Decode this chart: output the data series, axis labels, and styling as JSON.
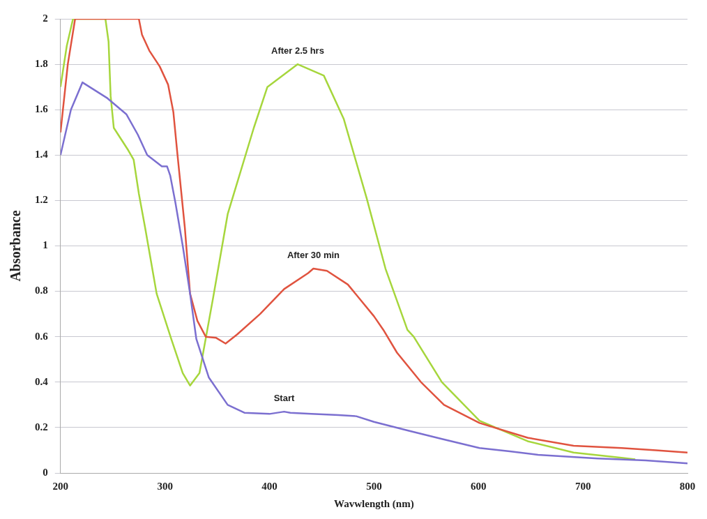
{
  "chart_data": {
    "type": "line",
    "xlabel": "Wavwlength (nm)",
    "ylabel": "Absorbance",
    "xlim": [
      200,
      800
    ],
    "xticks": [
      200,
      300,
      400,
      500,
      600,
      700,
      800
    ],
    "ylim": [
      0,
      2
    ],
    "yticks": [
      0,
      0.2,
      0.4,
      0.6,
      0.8,
      1,
      1.2,
      1.4,
      1.6,
      1.8,
      2
    ],
    "grid": "y",
    "marker": "none",
    "line_style": "solid",
    "series": [
      {
        "name": "Start",
        "color": "#7b6fd0",
        "x": [
          200,
          210,
          221,
          245,
          263,
          274,
          283,
          297,
          302,
          305,
          310,
          317,
          324,
          330,
          342,
          360,
          376,
          400,
          414,
          420,
          440,
          466,
          483,
          500,
          534,
          565,
          601,
          630,
          657,
          714,
          760,
          800
        ],
        "values": [
          1.4,
          1.6,
          1.72,
          1.65,
          1.58,
          1.49,
          1.4,
          1.35,
          1.35,
          1.31,
          1.19,
          1.0,
          0.79,
          0.59,
          0.42,
          0.3,
          0.265,
          0.26,
          0.27,
          0.265,
          0.26,
          0.255,
          0.25,
          0.225,
          0.185,
          0.15,
          0.11,
          0.095,
          0.08,
          0.064,
          0.055,
          0.042
        ]
      },
      {
        "name": "After 30 min",
        "color": "#e0533f",
        "x": [
          200,
          207,
          214,
          240,
          275,
          278,
          285,
          295,
          303,
          308,
          312,
          319,
          324,
          331,
          339,
          349,
          358,
          369,
          391,
          414,
          437,
          442,
          455,
          475,
          500,
          509,
          522,
          545,
          567,
          601,
          647,
          691,
          737,
          770,
          800
        ],
        "values": [
          1.5,
          1.8,
          2,
          2,
          2,
          1.93,
          1.86,
          1.79,
          1.71,
          1.59,
          1.4,
          1.08,
          0.79,
          0.67,
          0.6,
          0.595,
          0.57,
          0.61,
          0.7,
          0.81,
          0.88,
          0.9,
          0.89,
          0.83,
          0.69,
          0.63,
          0.53,
          0.4,
          0.3,
          0.22,
          0.155,
          0.12,
          0.11,
          0.1,
          0.09
        ]
      },
      {
        "name": "After 2.5 hrs",
        "color": "#a6d63c",
        "x": [
          200,
          206,
          212,
          243,
          246,
          248,
          251,
          265,
          270,
          275,
          281,
          292,
          306,
          317,
          324,
          333,
          346,
          360,
          385,
          398,
          427,
          452,
          471,
          493,
          511,
          532,
          538,
          565,
          601,
          647,
          691,
          737,
          750
        ],
        "values": [
          1.7,
          1.88,
          2,
          2,
          1.9,
          1.66,
          1.52,
          1.42,
          1.38,
          1.23,
          1.08,
          0.79,
          0.59,
          0.44,
          0.385,
          0.44,
          0.77,
          1.14,
          1.52,
          1.7,
          1.8,
          1.75,
          1.56,
          1.21,
          0.9,
          0.63,
          0.6,
          0.4,
          0.23,
          0.14,
          0.09,
          0.067,
          0.06
        ]
      }
    ]
  }
}
